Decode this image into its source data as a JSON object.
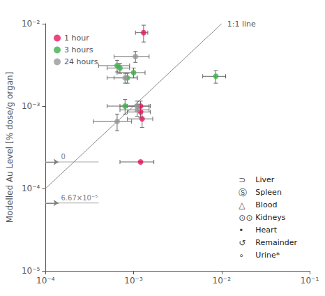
{
  "chart_data": {
    "type": "scatter",
    "ylabel": "Modelled Au Level [% dose/g organ]",
    "log": true,
    "grid": false,
    "legend": "upper left",
    "xlim": [
      0.0001,
      0.1
    ],
    "ylim": [
      1e-05,
      0.01
    ],
    "xticks": [
      {
        "value": 0.0001,
        "label": "10⁻⁴"
      },
      {
        "value": 0.001,
        "label": "10⁻³"
      },
      {
        "value": 0.01,
        "label": "10⁻²"
      },
      {
        "value": 0.1,
        "label": "10⁻¹"
      }
    ],
    "yticks": [
      {
        "value": 1e-05,
        "label": "10⁻⁵"
      },
      {
        "value": 0.0001,
        "label": "10⁻⁴"
      },
      {
        "value": 0.001,
        "label": "10⁻³"
      },
      {
        "value": 0.01,
        "label": "10⁻²"
      }
    ],
    "error_bar_color": "#666666",
    "series": [
      {
        "name": "1 hour",
        "color": "#e8175d",
        "x": [
          0.0013,
          0.0012,
          0.0012,
          0.00125,
          0.0012
        ],
        "y": [
          0.0078,
          0.001,
          0.00085,
          0.0007,
          0.00021
        ],
        "x_err_low": [
          0.00025,
          0.00035,
          0.00035,
          0.0004,
          0.0005
        ],
        "x_err_high": [
          0.00015,
          0.00035,
          0.00035,
          0.0004,
          0.0005
        ],
        "y_err_low": [
          0.0018,
          0.00015,
          0.00012,
          0.00015,
          0.0
        ],
        "y_err_high": [
          0.0018,
          0.00015,
          0.00012,
          0.00015,
          0.0
        ]
      },
      {
        "name": "3 hours",
        "color": "#3db04b",
        "x": [
          0.00065,
          0.0007,
          0.001,
          0.00085,
          0.0086,
          0.0008
        ],
        "y": [
          0.0031,
          0.0029,
          0.00255,
          0.0022,
          0.0023,
          0.001
        ],
        "x_err_low": [
          0.00025,
          0.0002,
          0.00035,
          0.00025,
          0.0025,
          0.0003
        ],
        "x_err_high": [
          0.00025,
          0.0002,
          0.00035,
          0.00025,
          0.0025,
          0.0003
        ],
        "y_err_low": [
          0.0005,
          0.0004,
          0.00035,
          0.0003,
          0.0004,
          0.0002
        ],
        "y_err_high": [
          0.0005,
          0.0004,
          0.00035,
          0.0003,
          0.0004,
          0.0002
        ]
      },
      {
        "name": "24 hours",
        "color": "#999999",
        "x": [
          0.00105,
          0.0008,
          0.0011,
          0.0011,
          0.00065
        ],
        "y": [
          0.004,
          0.0022,
          0.001,
          0.0009,
          0.00065
        ],
        "x_err_low": [
          0.00045,
          0.0003,
          0.0004,
          0.0004,
          0.0003
        ],
        "x_err_high": [
          0.00045,
          0.0003,
          0.0004,
          0.0004,
          0.0003
        ],
        "y_err_low": [
          0.0006,
          0.0003,
          0.00015,
          0.00015,
          0.00015
        ],
        "y_err_high": [
          0.0006,
          0.0003,
          0.00015,
          0.00015,
          0.00015
        ]
      }
    ],
    "reference_line": {
      "label": "1:1 line",
      "x": [
        0.0001,
        0.01
      ],
      "y": [
        0.0001,
        0.01
      ],
      "color": "#888888"
    },
    "annotations": [
      {
        "text": "6.67×10⁻⁵",
        "y": 6.67e-05,
        "x": [
          0.0001,
          0.0004
        ],
        "arrow_x": 0.00014,
        "text_x": 0.00015
      },
      {
        "text": "0",
        "y": 0.00021,
        "x": [
          0.0001,
          0.0004
        ],
        "arrow_x": 0.00014,
        "text_x": 0.00015
      }
    ],
    "organ_legend": [
      {
        "symbol": "⊃",
        "label": "Liver"
      },
      {
        "symbol": "Ⓢ",
        "label": "Spleen"
      },
      {
        "symbol": "△",
        "label": "Blood"
      },
      {
        "symbol": "⊙⊙",
        "label": "Kidneys"
      },
      {
        "symbol": "•",
        "label": "Heart"
      },
      {
        "symbol": "↺",
        "label": "Remainder"
      },
      {
        "symbol": "∘",
        "label": "Urine*"
      }
    ]
  }
}
